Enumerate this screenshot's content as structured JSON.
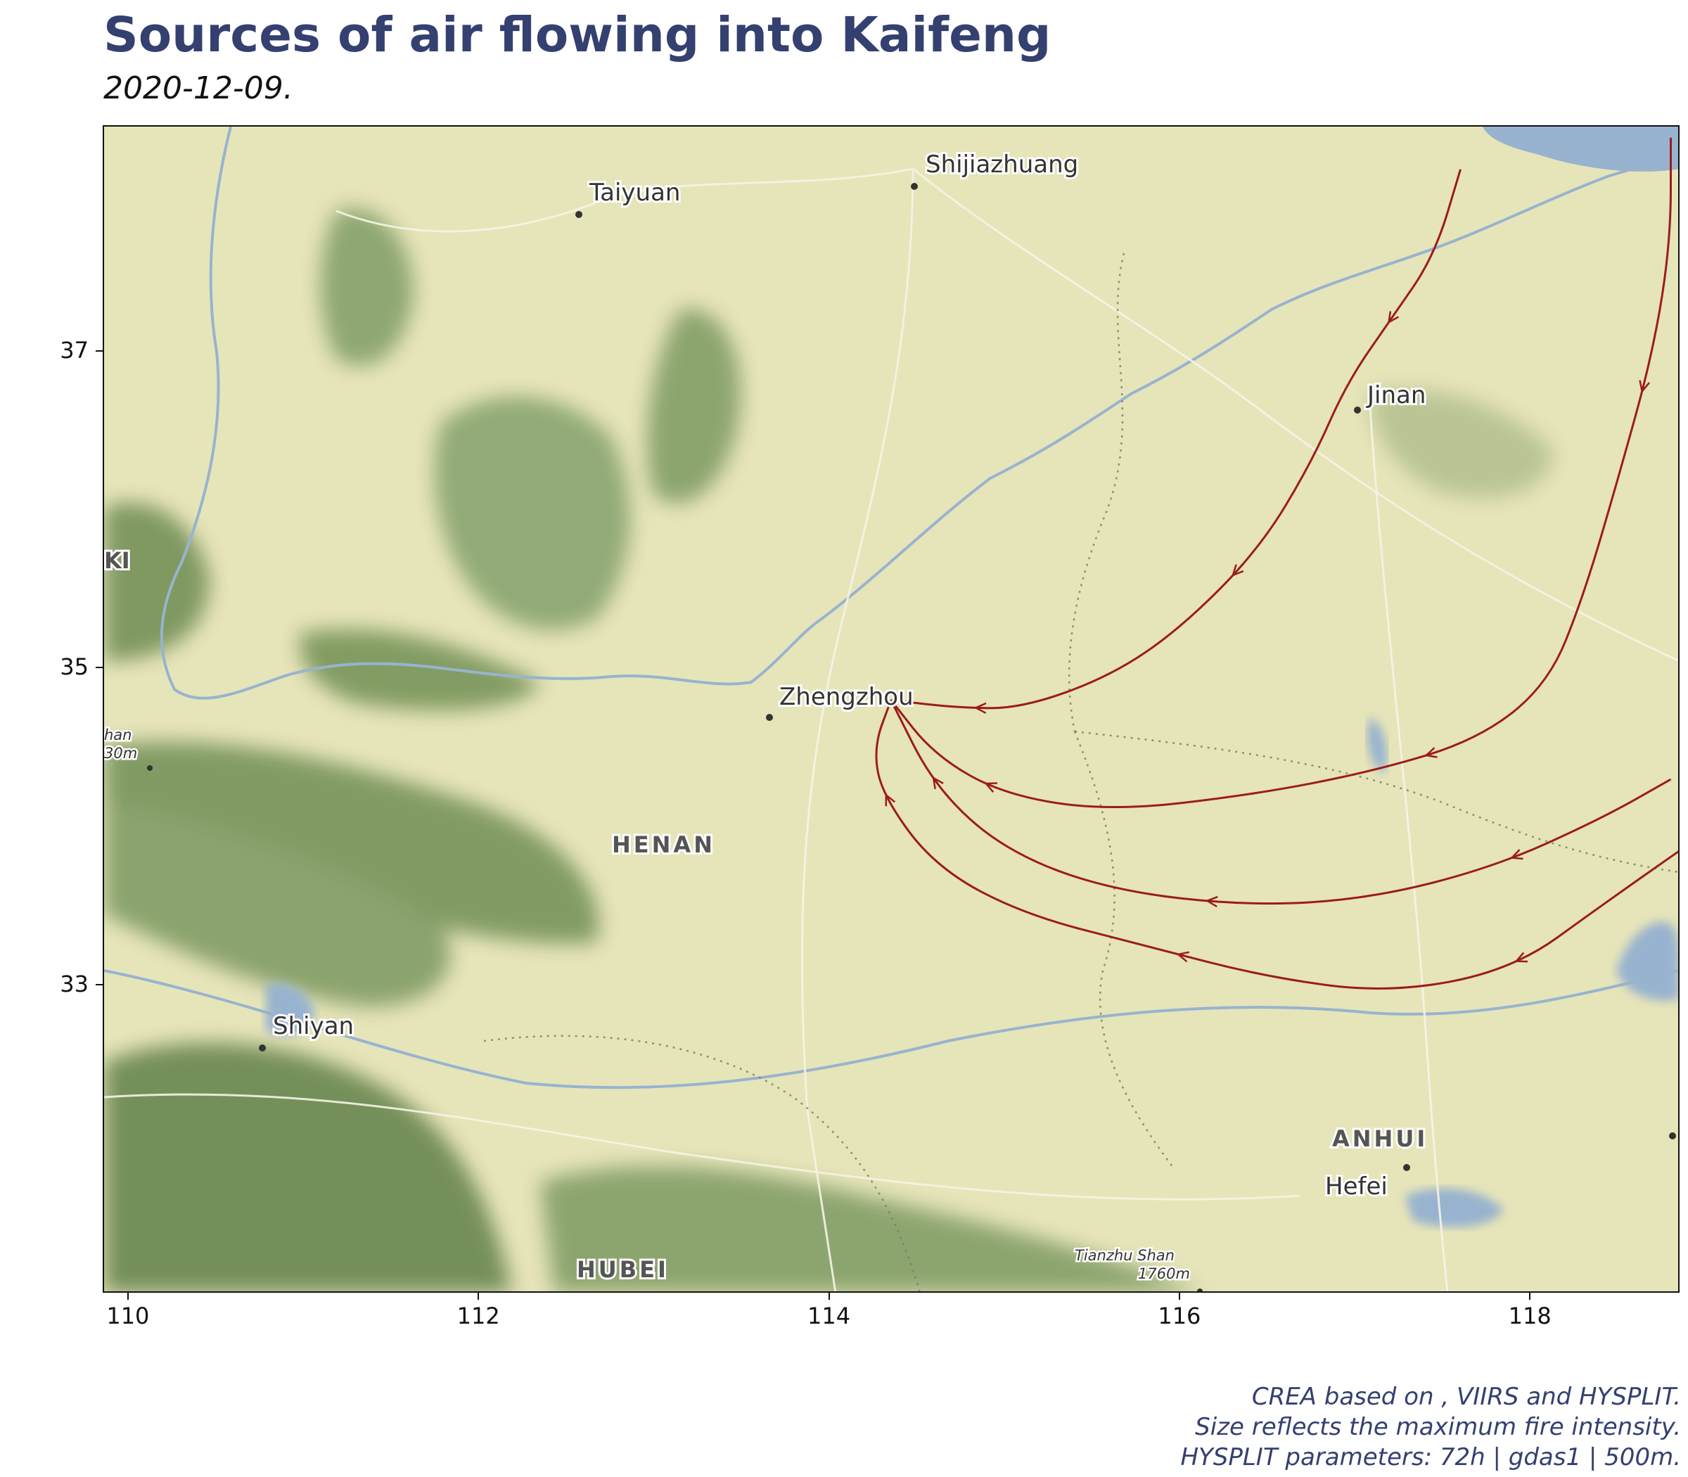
{
  "title": "Sources of air flowing into Kaifeng",
  "subtitle": "2020-12-09.",
  "caption": [
    "CREA based on , VIIRS and HYSPLIT.",
    "Size reflects the maximum fire intensity.",
    "HYSPLIT parameters: 72h | gdas1 | 500m."
  ],
  "axes": {
    "x_ticks": [
      "110",
      "112",
      "114",
      "116",
      "118"
    ],
    "y_ticks": [
      "37",
      "35",
      "33"
    ]
  },
  "map_labels": {
    "cities": [
      "Shijiazhuang",
      "Taiyuan",
      "Jinan",
      "Zhengzhou",
      "Shiyan",
      "Hefei"
    ],
    "regions": [
      "HENAN",
      "ANHUI",
      "HUBEI"
    ],
    "peak": [
      "Tianzhu Shan",
      "1760m"
    ],
    "edge_fragments": [
      "KI",
      "han",
      "30m"
    ]
  },
  "colors": {
    "trajectory": "#9b1c1c",
    "water": "#98b3cf",
    "land": "#e6e4b9",
    "forest": "#7f9a63",
    "title": "#344070"
  },
  "chart_data": {
    "type": "map-trajectories",
    "title": "Sources of air flowing into Kaifeng",
    "subtitle": "2020-12-09.",
    "xlim": [
      109.86,
      118.85
    ],
    "ylim": [
      31.06,
      38.42
    ],
    "x_ticks": [
      110,
      112,
      114,
      116,
      118
    ],
    "y_ticks": [
      33,
      35,
      37
    ],
    "receptor": {
      "lon": 114.35,
      "lat": 34.8
    },
    "series": [
      {
        "points": [
          [
            117.6,
            38.15
          ],
          [
            117.45,
            37.6
          ],
          [
            117.2,
            37.2
          ],
          [
            116.95,
            36.8
          ],
          [
            116.75,
            36.3
          ],
          [
            116.45,
            35.75
          ],
          [
            116.0,
            35.25
          ],
          [
            115.6,
            34.95
          ],
          [
            115.1,
            34.75
          ],
          [
            114.75,
            34.75
          ],
          [
            114.35,
            34.8
          ]
        ]
      },
      {
        "points": [
          [
            118.8,
            38.35
          ],
          [
            118.8,
            37.7
          ],
          [
            118.7,
            37.0
          ],
          [
            118.5,
            36.2
          ],
          [
            118.3,
            35.45
          ],
          [
            118.1,
            34.9
          ],
          [
            117.7,
            34.55
          ],
          [
            117.1,
            34.35
          ],
          [
            116.4,
            34.2
          ],
          [
            115.6,
            34.1
          ],
          [
            115.0,
            34.2
          ],
          [
            114.6,
            34.45
          ],
          [
            114.35,
            34.8
          ]
        ]
      },
      {
        "points": [
          [
            118.8,
            34.3
          ],
          [
            118.4,
            34.05
          ],
          [
            117.8,
            33.75
          ],
          [
            117.1,
            33.55
          ],
          [
            116.4,
            33.5
          ],
          [
            115.6,
            33.6
          ],
          [
            115.0,
            33.85
          ],
          [
            114.6,
            34.25
          ],
          [
            114.35,
            34.8
          ]
        ]
      },
      {
        "points": [
          [
            118.85,
            33.85
          ],
          [
            118.4,
            33.5
          ],
          [
            117.9,
            33.1
          ],
          [
            117.2,
            32.95
          ],
          [
            116.5,
            33.05
          ],
          [
            115.8,
            33.25
          ],
          [
            115.1,
            33.45
          ],
          [
            114.6,
            33.75
          ],
          [
            114.3,
            34.2
          ],
          [
            114.25,
            34.5
          ],
          [
            114.35,
            34.8
          ]
        ]
      }
    ]
  }
}
